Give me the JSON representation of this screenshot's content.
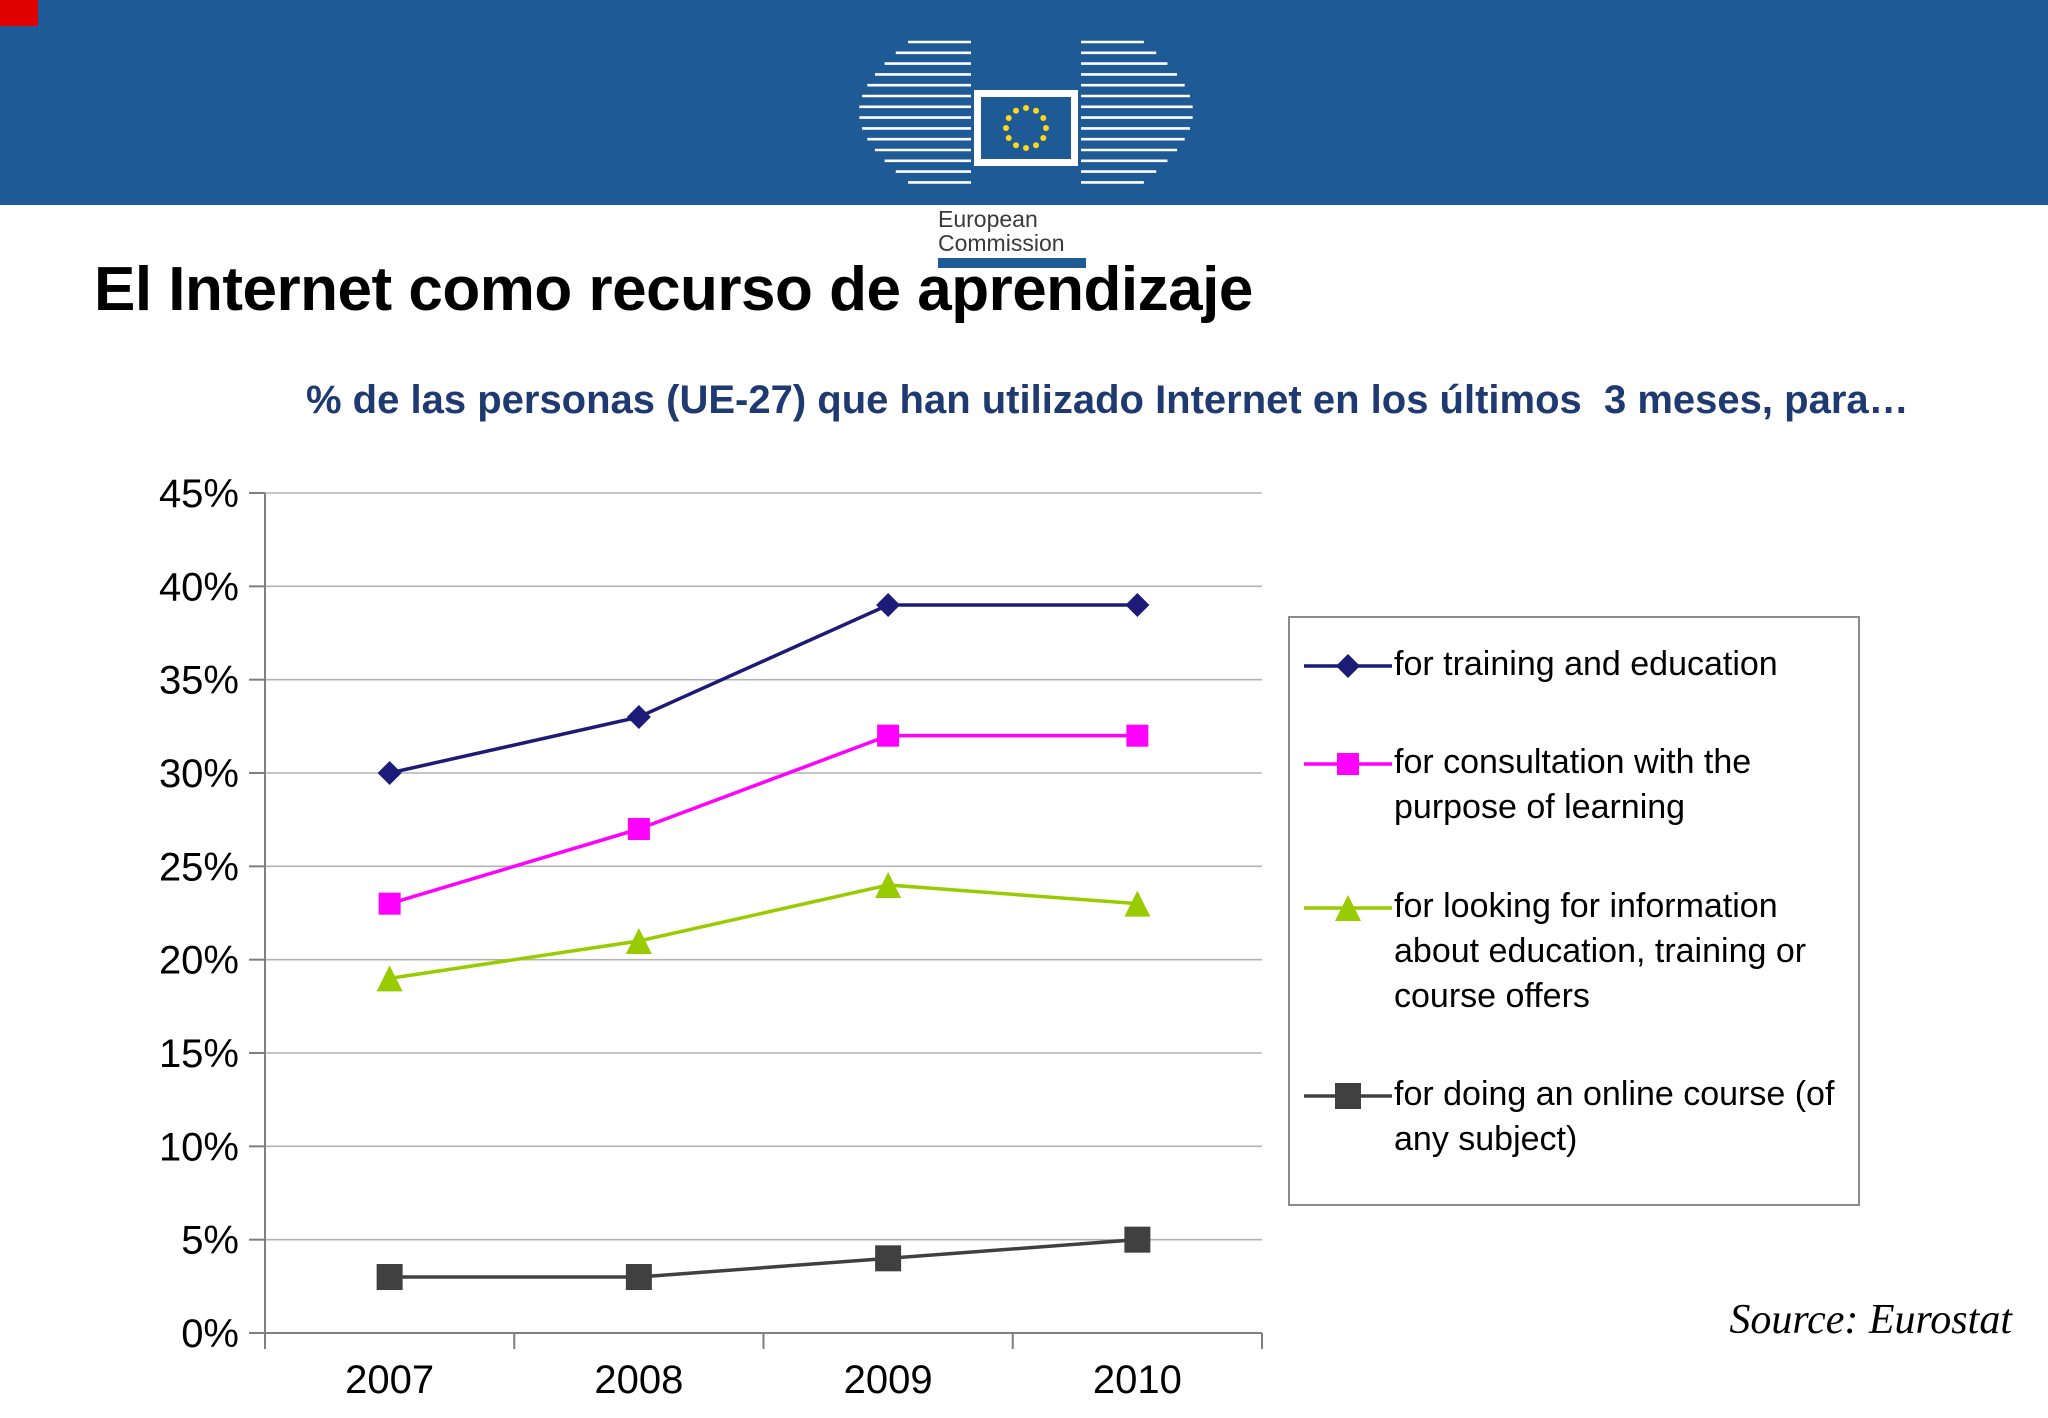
{
  "theme": {
    "banner_blue": "#1e5a96",
    "star_yellow": "#ffd617",
    "subtitle_blue": "#1f3a70",
    "grid_gray": "#b3b3b3",
    "axis_gray": "#7f7f7f",
    "corner_mark_red": "#e00000",
    "legend_border": "#8c8c8c"
  },
  "header": {
    "logo_line1": "European",
    "logo_line2": "Commission"
  },
  "title": "El Internet como recurso de aprendizaje",
  "source": "Source: Eurostat",
  "chart_data": {
    "type": "line",
    "title": "% de las personas (UE-27) que han utilizado Internet en los últimos  3 meses, para…",
    "categories": [
      "2007",
      "2008",
      "2009",
      "2010"
    ],
    "series": [
      {
        "name": "for training and education",
        "color": "#1c1c78",
        "marker": "diamond",
        "values": [
          30,
          33,
          39,
          39
        ]
      },
      {
        "name": "for consultation with the purpose of learning",
        "color": "#ff00ff",
        "marker": "square",
        "values": [
          23,
          27,
          32,
          32
        ]
      },
      {
        "name": "for looking for information about education, training or course offers",
        "color": "#99cc00",
        "marker": "triangle",
        "values": [
          19,
          21,
          24,
          23
        ]
      },
      {
        "name": "for doing an online course (of any subject)",
        "color": "#404040",
        "marker": "square",
        "values": [
          3,
          3,
          4,
          5
        ]
      }
    ],
    "ylim": [
      0,
      45
    ],
    "ytick_step": 5,
    "ytick_labels": [
      "0%",
      "5%",
      "10%",
      "15%",
      "20%",
      "25%",
      "30%",
      "35%",
      "40%",
      "45%"
    ],
    "grid": true,
    "legend_position": "right"
  }
}
